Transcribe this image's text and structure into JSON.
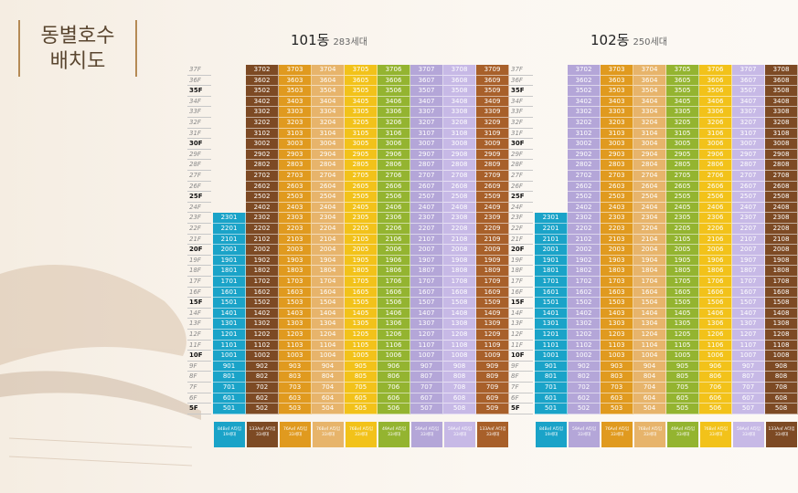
{
  "title": {
    "line1": "동별호수",
    "line2": "배치도"
  },
  "colors": {
    "cyan": "#1aa3c8",
    "brown": "#7d4a24",
    "orange": "#e09a1f",
    "peach": "#e7b46b",
    "yellow": "#f2c21a",
    "green": "#94b430",
    "lilac": "#b4a6d8",
    "lavender": "#c7b9e6",
    "rust": "#a8602a"
  },
  "building101": {
    "name": "101동",
    "units": "283세대",
    "floors": [
      "37F",
      "36F",
      "35F",
      "34F",
      "33F",
      "32F",
      "31F",
      "30F",
      "29F",
      "28F",
      "27F",
      "26F",
      "25F",
      "24F",
      "23F",
      "22F",
      "21F",
      "20F",
      "19F",
      "18F",
      "17F",
      "16F",
      "15F",
      "14F",
      "13F",
      "12F",
      "11F",
      "10F",
      "9F",
      "8F",
      "7F",
      "6F",
      "5F"
    ],
    "bold_floors": [
      "35F",
      "30F",
      "25F",
      "20F",
      "15F",
      "10F",
      "5F"
    ],
    "col_colors": [
      "cyan",
      "brown",
      "orange",
      "peach",
      "yellow",
      "green",
      "lilac",
      "lavender",
      "rust"
    ],
    "legend": [
      {
        "l1": "84B㎡ A타입",
        "l2": "19세대"
      },
      {
        "l1": "133A㎡ A타입",
        "l2": "33세대"
      },
      {
        "l1": "76A㎡ A타입",
        "l2": "33세대"
      },
      {
        "l1": "76B㎡ A타입",
        "l2": "33세대"
      },
      {
        "l1": "76B㎡ A타입",
        "l2": "33세대"
      },
      {
        "l1": "49A㎡ A타입",
        "l2": "33세대"
      },
      {
        "l1": "59A㎡ A타입",
        "l2": "33세대"
      },
      {
        "l1": "59A㎡ A타입",
        "l2": "33세대"
      },
      {
        "l1": "133A㎡ A타입",
        "l2": "33세대"
      }
    ]
  },
  "building102": {
    "name": "102동",
    "units": "250세대",
    "floors": [
      "37F",
      "36F",
      "35F",
      "34F",
      "33F",
      "32F",
      "31F",
      "30F",
      "29F",
      "28F",
      "27F",
      "26F",
      "25F",
      "24F",
      "23F",
      "22F",
      "21F",
      "20F",
      "19F",
      "18F",
      "17F",
      "16F",
      "15F",
      "14F",
      "13F",
      "12F",
      "11F",
      "10F",
      "9F",
      "8F",
      "7F",
      "6F",
      "5F"
    ],
    "bold_floors": [
      "35F",
      "30F",
      "25F",
      "20F",
      "15F",
      "10F",
      "5F"
    ],
    "col_colors": [
      "cyan",
      "lilac",
      "orange",
      "peach",
      "green",
      "yellow",
      "lavender",
      "brown"
    ],
    "legend": [
      {
        "l1": "84B㎡ A타입",
        "l2": "19세대"
      },
      {
        "l1": "59A㎡ A타입",
        "l2": "33세대"
      },
      {
        "l1": "76A㎡ A타입",
        "l2": "33세대"
      },
      {
        "l1": "76B㎡ A타입",
        "l2": "33세대"
      },
      {
        "l1": "49A㎡ A타입",
        "l2": "33세대"
      },
      {
        "l1": "76B㎡ A타입",
        "l2": "33세대"
      },
      {
        "l1": "59A㎡ A타입",
        "l2": "33세대"
      },
      {
        "l1": "133A㎡ A타입",
        "l2": "33세대"
      }
    ]
  }
}
